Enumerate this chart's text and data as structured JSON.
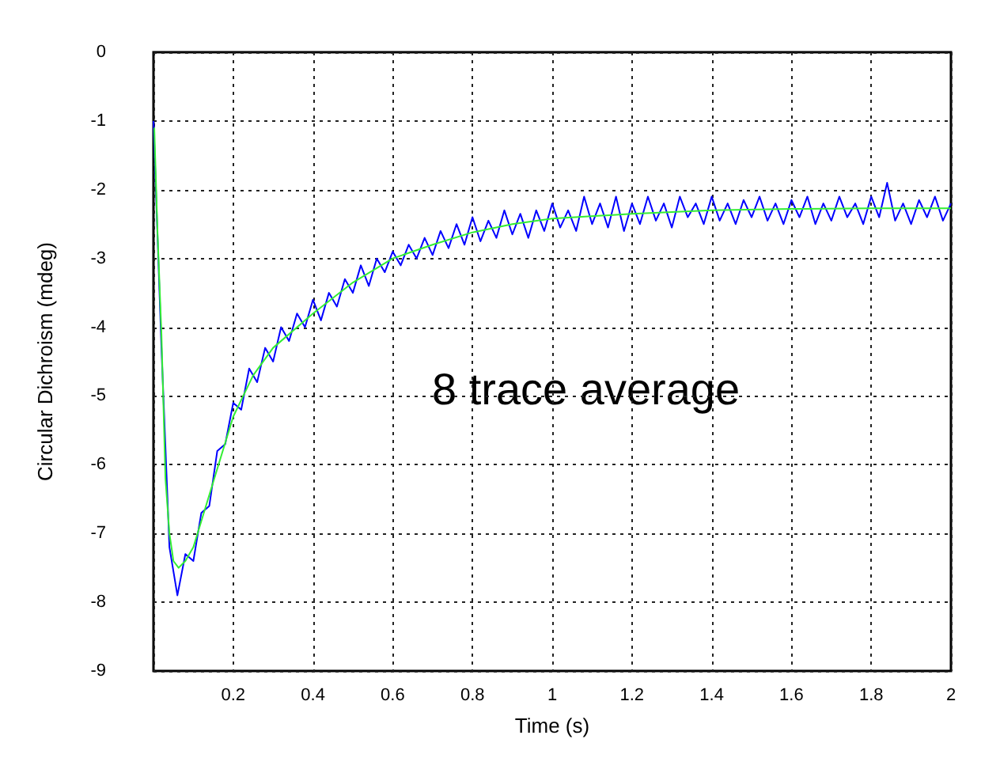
{
  "chart_data": {
    "type": "line",
    "xlabel": "Time (s)",
    "ylabel": "Circular Dichroism (mdeg)",
    "annotations": [
      "8 trace average"
    ],
    "grid": true,
    "marker": "none",
    "line_style": "solid",
    "xlim": [
      0,
      2
    ],
    "xticks": [
      {
        "value": 0,
        "label": null
      },
      0.2,
      0.4,
      0.6,
      0.8,
      1,
      1.2,
      1.4,
      1.6,
      1.8,
      2
    ],
    "ylim": [
      -9,
      0
    ],
    "yticks": [
      -9,
      -8,
      -7,
      -6,
      -5,
      -4,
      -3,
      -2,
      -1,
      0
    ],
    "series": [
      {
        "color": "#0000ff",
        "x": [
          0,
          0.02,
          0.04,
          0.06,
          0.08,
          0.1,
          0.12,
          0.14,
          0.16,
          0.18,
          0.2,
          0.22,
          0.24,
          0.26,
          0.28,
          0.3,
          0.32,
          0.34,
          0.36,
          0.38,
          0.4,
          0.42,
          0.44,
          0.46,
          0.48,
          0.5,
          0.52,
          0.54,
          0.56,
          0.58,
          0.6,
          0.62,
          0.64,
          0.66,
          0.68,
          0.7,
          0.72,
          0.74,
          0.76,
          0.78,
          0.8,
          0.82,
          0.84,
          0.86,
          0.88,
          0.9,
          0.92,
          0.94,
          0.96,
          0.98,
          1,
          1.02,
          1.04,
          1.06,
          1.08,
          1.1,
          1.12,
          1.14,
          1.16,
          1.18,
          1.2,
          1.22,
          1.24,
          1.26,
          1.28,
          1.3,
          1.32,
          1.34,
          1.36,
          1.38,
          1.4,
          1.42,
          1.44,
          1.46,
          1.48,
          1.5,
          1.52,
          1.54,
          1.56,
          1.58,
          1.6,
          1.62,
          1.64,
          1.66,
          1.68,
          1.7,
          1.72,
          1.74,
          1.76,
          1.78,
          1.8,
          1.82,
          1.84,
          1.86,
          1.88,
          1.9,
          1.92,
          1.94,
          1.96,
          1.98,
          2
        ],
        "values": [
          -1.0,
          -4.3,
          -7.2,
          -7.9,
          -7.3,
          -7.4,
          -6.7,
          -6.6,
          -5.8,
          -5.7,
          -5.1,
          -5.2,
          -4.6,
          -4.8,
          -4.3,
          -4.5,
          -4.0,
          -4.2,
          -3.8,
          -4.0,
          -3.6,
          -3.9,
          -3.5,
          -3.7,
          -3.3,
          -3.5,
          -3.1,
          -3.4,
          -3.0,
          -3.2,
          -2.9,
          -3.1,
          -2.8,
          -3.0,
          -2.7,
          -2.95,
          -2.6,
          -2.85,
          -2.5,
          -2.8,
          -2.4,
          -2.75,
          -2.45,
          -2.7,
          -2.3,
          -2.65,
          -2.35,
          -2.7,
          -2.3,
          -2.6,
          -2.2,
          -2.55,
          -2.3,
          -2.6,
          -2.1,
          -2.5,
          -2.2,
          -2.55,
          -2.1,
          -2.6,
          -2.2,
          -2.5,
          -2.1,
          -2.45,
          -2.2,
          -2.55,
          -2.1,
          -2.4,
          -2.2,
          -2.5,
          -2.1,
          -2.45,
          -2.2,
          -2.5,
          -2.15,
          -2.4,
          -2.1,
          -2.45,
          -2.2,
          -2.5,
          -2.15,
          -2.4,
          -2.1,
          -2.5,
          -2.2,
          -2.45,
          -2.1,
          -2.4,
          -2.2,
          -2.5,
          -2.1,
          -2.4,
          -1.9,
          -2.45,
          -2.2,
          -2.5,
          -2.15,
          -2.4,
          -2.1,
          -2.45,
          -2.2
        ]
      },
      {
        "color": "#33ee33",
        "x": [
          0.002,
          0.01,
          0.02,
          0.03,
          0.04,
          0.05,
          0.063,
          0.08,
          0.1,
          0.15,
          0.2,
          0.25,
          0.3,
          0.4,
          0.5,
          0.6,
          0.7,
          0.8,
          0.9,
          1.0,
          1.2,
          1.4,
          1.6,
          1.8,
          2.0
        ],
        "values": [
          -1.1,
          -2.6,
          -4.1,
          -6.2,
          -7.0,
          -7.4,
          -7.5,
          -7.4,
          -7.2,
          -6.25,
          -5.3,
          -4.7,
          -4.3,
          -3.8,
          -3.35,
          -3.0,
          -2.8,
          -2.62,
          -2.5,
          -2.42,
          -2.35,
          -2.3,
          -2.28,
          -2.27,
          -2.27
        ]
      }
    ]
  }
}
